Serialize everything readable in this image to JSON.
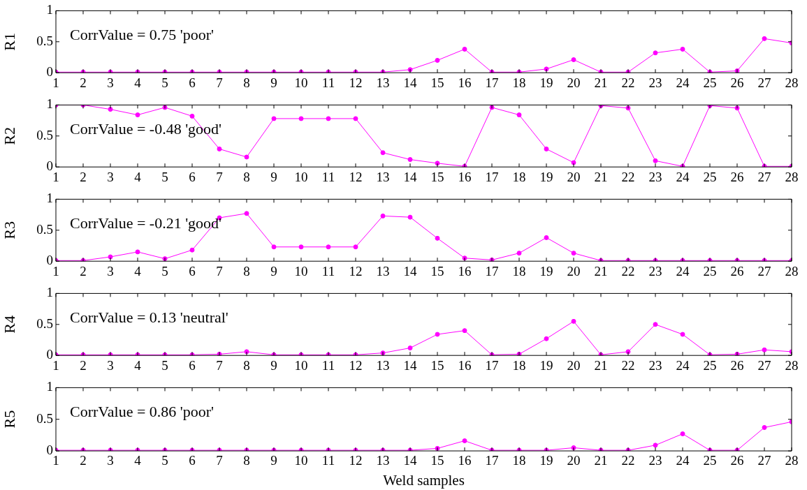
{
  "chart_data": [
    {
      "type": "line",
      "ylabel": "R1",
      "annotations": [
        "CorrValue = 0.75 'poor'"
      ],
      "x": [
        1,
        2,
        3,
        4,
        5,
        6,
        7,
        8,
        9,
        10,
        11,
        12,
        13,
        14,
        15,
        16,
        17,
        18,
        19,
        20,
        21,
        22,
        23,
        24,
        25,
        26,
        27,
        28
      ],
      "xlim": [
        1,
        28
      ],
      "xticks": [
        1,
        2,
        3,
        4,
        5,
        6,
        7,
        8,
        9,
        10,
        11,
        12,
        13,
        14,
        15,
        16,
        17,
        18,
        19,
        20,
        21,
        22,
        23,
        24,
        25,
        26,
        27,
        28
      ],
      "ylim": [
        0,
        1
      ],
      "yticks": [
        0,
        0.5,
        1
      ],
      "marker": "circle",
      "line_style": "solid",
      "series": [
        {
          "color": "#ff00ff",
          "values": [
            0.01,
            0.01,
            0.01,
            0.01,
            0.01,
            0.01,
            0.01,
            0.01,
            0.01,
            0.01,
            0.01,
            0.01,
            0.01,
            0.05,
            0.2,
            0.38,
            0.01,
            0.01,
            0.06,
            0.21,
            0.01,
            0.01,
            0.32,
            0.38,
            0.01,
            0.03,
            0.55,
            0.48
          ]
        }
      ]
    },
    {
      "type": "line",
      "ylabel": "R2",
      "annotations": [
        "CorrValue = -0.48 'good'"
      ],
      "x": [
        1,
        2,
        3,
        4,
        5,
        6,
        7,
        8,
        9,
        10,
        11,
        12,
        13,
        14,
        15,
        16,
        17,
        18,
        19,
        20,
        21,
        22,
        23,
        24,
        25,
        26,
        27,
        28
      ],
      "xlim": [
        1,
        28
      ],
      "xticks": [
        1,
        2,
        3,
        4,
        5,
        6,
        7,
        8,
        9,
        10,
        11,
        12,
        13,
        14,
        15,
        16,
        17,
        18,
        19,
        20,
        21,
        22,
        23,
        24,
        25,
        26,
        27,
        28
      ],
      "ylim": [
        0,
        1
      ],
      "yticks": [
        0,
        0.5,
        1
      ],
      "marker": "circle",
      "line_style": "solid",
      "series": [
        {
          "color": "#ff00ff",
          "values": [
            1,
            1,
            0.93,
            0.84,
            0.96,
            0.82,
            0.29,
            0.16,
            0.78,
            0.78,
            0.78,
            0.78,
            0.23,
            0.12,
            0.06,
            0.01,
            0.96,
            0.84,
            0.29,
            0.07,
            0.99,
            0.95,
            0.1,
            0.01,
            0.99,
            0.95,
            0.01,
            0.01
          ]
        }
      ]
    },
    {
      "type": "line",
      "ylabel": "R3",
      "annotations": [
        "CorrValue = -0.21 'good'"
      ],
      "x": [
        1,
        2,
        3,
        4,
        5,
        6,
        7,
        8,
        9,
        10,
        11,
        12,
        13,
        14,
        15,
        16,
        17,
        18,
        19,
        20,
        21,
        22,
        23,
        24,
        25,
        26,
        27,
        28
      ],
      "xlim": [
        1,
        28
      ],
      "xticks": [
        1,
        2,
        3,
        4,
        5,
        6,
        7,
        8,
        9,
        10,
        11,
        12,
        13,
        14,
        15,
        16,
        17,
        18,
        19,
        20,
        21,
        22,
        23,
        24,
        25,
        26,
        27,
        28
      ],
      "ylim": [
        0,
        1
      ],
      "yticks": [
        0,
        0.5,
        1
      ],
      "marker": "circle",
      "line_style": "solid",
      "series": [
        {
          "color": "#ff00ff",
          "values": [
            0.01,
            0.01,
            0.07,
            0.15,
            0.04,
            0.18,
            0.7,
            0.77,
            0.23,
            0.23,
            0.23,
            0.23,
            0.73,
            0.71,
            0.37,
            0.05,
            0.02,
            0.13,
            0.38,
            0.13,
            0.01,
            0.01,
            0.01,
            0.01,
            0.01,
            0.01,
            0.01,
            0.01
          ]
        }
      ]
    },
    {
      "type": "line",
      "ylabel": "R4",
      "annotations": [
        "CorrValue = 0.13 'neutral'"
      ],
      "x": [
        1,
        2,
        3,
        4,
        5,
        6,
        7,
        8,
        9,
        10,
        11,
        12,
        13,
        14,
        15,
        16,
        17,
        18,
        19,
        20,
        21,
        22,
        23,
        24,
        25,
        26,
        27,
        28
      ],
      "xlim": [
        1,
        28
      ],
      "xticks": [
        1,
        2,
        3,
        4,
        5,
        6,
        7,
        8,
        9,
        10,
        11,
        12,
        13,
        14,
        15,
        16,
        17,
        18,
        19,
        20,
        21,
        22,
        23,
        24,
        25,
        26,
        27,
        28
      ],
      "ylim": [
        0,
        1
      ],
      "yticks": [
        0,
        0.5,
        1
      ],
      "marker": "circle",
      "line_style": "solid",
      "series": [
        {
          "color": "#ff00ff",
          "values": [
            0.01,
            0.01,
            0.01,
            0.01,
            0.01,
            0.01,
            0.02,
            0.06,
            0.01,
            0.01,
            0.01,
            0.01,
            0.04,
            0.12,
            0.34,
            0.4,
            0.01,
            0.02,
            0.27,
            0.55,
            0.01,
            0.06,
            0.5,
            0.34,
            0.01,
            0.02,
            0.09,
            0.06
          ]
        }
      ]
    },
    {
      "type": "line",
      "ylabel": "R5",
      "xlabel": "Weld samples",
      "annotations": [
        "CorrValue = 0.86 'poor'"
      ],
      "x": [
        1,
        2,
        3,
        4,
        5,
        6,
        7,
        8,
        9,
        10,
        11,
        12,
        13,
        14,
        15,
        16,
        17,
        18,
        19,
        20,
        21,
        22,
        23,
        24,
        25,
        26,
        27,
        28
      ],
      "xlim": [
        1,
        28
      ],
      "xticks": [
        1,
        2,
        3,
        4,
        5,
        6,
        7,
        8,
        9,
        10,
        11,
        12,
        13,
        14,
        15,
        16,
        17,
        18,
        19,
        20,
        21,
        22,
        23,
        24,
        25,
        26,
        27,
        28
      ],
      "ylim": [
        0,
        1
      ],
      "yticks": [
        0,
        0.5,
        1
      ],
      "marker": "circle",
      "line_style": "solid",
      "series": [
        {
          "color": "#ff00ff",
          "values": [
            0.01,
            0.01,
            0.01,
            0.01,
            0.01,
            0.01,
            0.01,
            0.01,
            0.01,
            0.01,
            0.01,
            0.01,
            0.01,
            0.01,
            0.04,
            0.16,
            0.01,
            0.01,
            0.01,
            0.05,
            0.01,
            0.01,
            0.09,
            0.27,
            0.01,
            0.01,
            0.37,
            0.46
          ]
        }
      ]
    }
  ]
}
